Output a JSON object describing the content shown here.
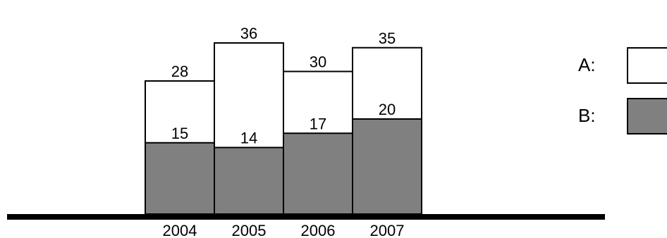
{
  "chart_data": {
    "type": "bar",
    "categories": [
      "2004",
      "2005",
      "2006",
      "2007"
    ],
    "series": [
      {
        "name": "A",
        "values": [
          28,
          36,
          30,
          35
        ],
        "color": "#ffffff"
      },
      {
        "name": "B",
        "values": [
          15,
          14,
          17,
          20
        ],
        "color": "#808080"
      }
    ],
    "ylim": [
      0,
      40
    ],
    "grid": false,
    "legend": {
      "position": "right",
      "items": [
        {
          "label": "A:",
          "color": "#ffffff"
        },
        {
          "label": "B:",
          "color": "#808080"
        }
      ]
    }
  }
}
